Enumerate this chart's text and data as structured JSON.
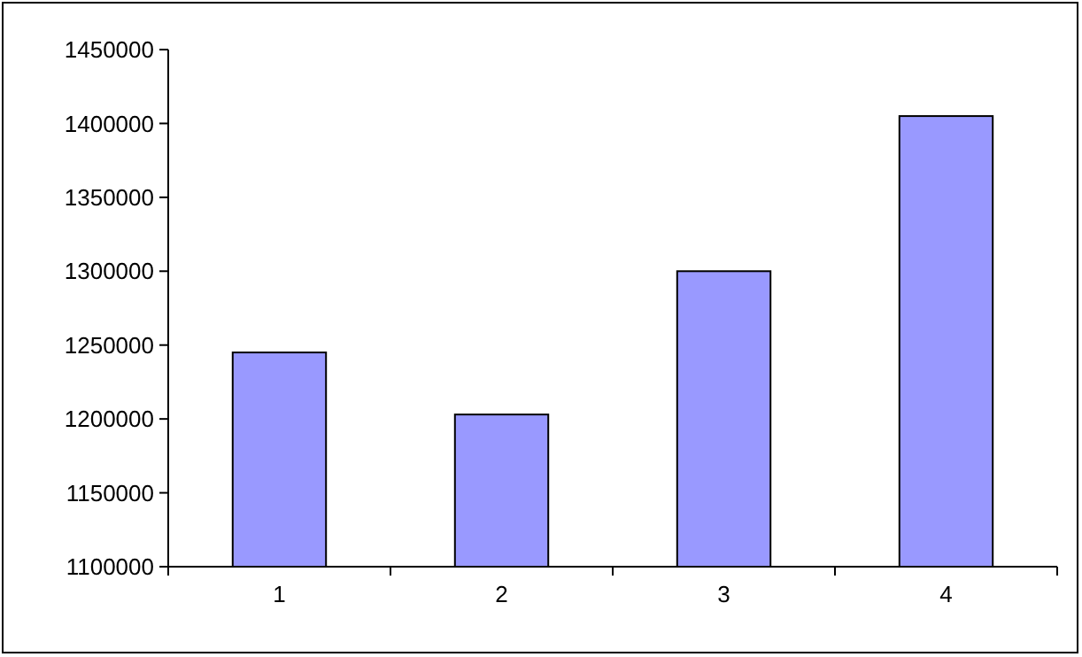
{
  "chart_data": {
    "type": "bar",
    "categories": [
      "1",
      "2",
      "3",
      "4"
    ],
    "values": [
      1245000,
      1203000,
      1300000,
      1405000
    ],
    "color": "#9999ff",
    "ylim": [
      1100000,
      1450000
    ],
    "yticks": [
      1100000,
      1150000,
      1200000,
      1250000,
      1300000,
      1350000,
      1400000,
      1450000
    ],
    "grid": false
  }
}
